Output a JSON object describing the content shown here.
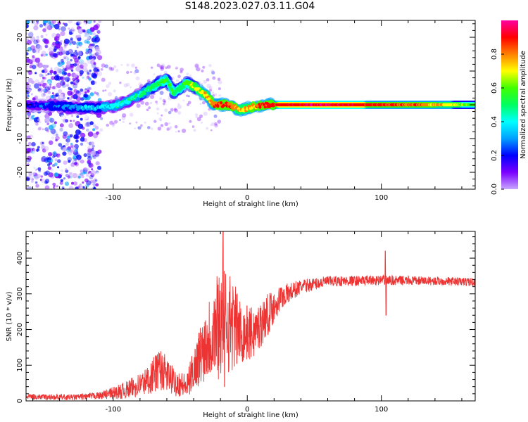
{
  "title": "S148.2023.027.03.11.G04",
  "chart_data": [
    {
      "type": "heatmap",
      "xlabel": "Height of straight line (km)",
      "ylabel": "Frequency (Hz)",
      "xlim": [
        -165,
        170
      ],
      "ylim": [
        -25,
        25
      ],
      "xticks": [
        -100,
        0,
        100
      ],
      "yticks": [
        -20,
        -10,
        0,
        10,
        20
      ],
      "colorbar": {
        "label": "Normalized spectral amplitude",
        "range": [
          0,
          1
        ],
        "ticks": [
          0.0,
          0.2,
          0.4,
          0.6,
          0.8
        ],
        "colors": [
          "#ffffff",
          "#c8a8ff",
          "#7a00ff",
          "#0000ff",
          "#00a0ff",
          "#00ffff",
          "#00ff60",
          "#40ff00",
          "#ffff00",
          "#ff8000",
          "#ff0000",
          "#ff00a0"
        ]
      },
      "ridge": [
        {
          "x": -165,
          "y": 0.0,
          "a": 0.25
        },
        {
          "x": -115,
          "y": -1.0,
          "a": 0.4
        },
        {
          "x": -100,
          "y": -0.5,
          "a": 0.45
        },
        {
          "x": -90,
          "y": 1.0,
          "a": 0.5
        },
        {
          "x": -80,
          "y": 3.0,
          "a": 0.5
        },
        {
          "x": -70,
          "y": 5.5,
          "a": 0.55
        },
        {
          "x": -60,
          "y": 7.5,
          "a": 0.6
        },
        {
          "x": -55,
          "y": 3.5,
          "a": 0.55
        },
        {
          "x": -50,
          "y": 5.0,
          "a": 0.55
        },
        {
          "x": -45,
          "y": 6.5,
          "a": 0.65
        },
        {
          "x": -38,
          "y": 5.0,
          "a": 0.7
        },
        {
          "x": -30,
          "y": 2.5,
          "a": 0.75
        },
        {
          "x": -25,
          "y": 0.0,
          "a": 0.85
        },
        {
          "x": -15,
          "y": 0.0,
          "a": 0.9
        },
        {
          "x": -5,
          "y": -1.5,
          "a": 0.75
        },
        {
          "x": 5,
          "y": -0.5,
          "a": 0.8
        },
        {
          "x": 15,
          "y": 0.0,
          "a": 0.9
        },
        {
          "x": 60,
          "y": 0.0,
          "a": 0.95
        },
        {
          "x": 95,
          "y": 0.0,
          "a": 0.9
        },
        {
          "x": 100,
          "y": 0.0,
          "a": 0.9
        },
        {
          "x": 140,
          "y": 0.0,
          "a": 0.8
        },
        {
          "x": 170,
          "y": 0.0,
          "a": 0.6
        }
      ]
    },
    {
      "type": "line",
      "xlabel": "Height of straight line (km)",
      "ylabel": "SNR (10 * v/v)",
      "xlim": [
        -165,
        170
      ],
      "ylim": [
        0,
        475
      ],
      "xticks": [
        -100,
        0,
        100
      ],
      "yticks": [
        0,
        100,
        200,
        300,
        400
      ],
      "color": "#ee3333",
      "envelope": [
        {
          "x": -165,
          "y": 12,
          "amp": 8
        },
        {
          "x": -130,
          "y": 10,
          "amp": 8
        },
        {
          "x": -110,
          "y": 15,
          "amp": 10
        },
        {
          "x": -90,
          "y": 30,
          "amp": 25
        },
        {
          "x": -75,
          "y": 55,
          "amp": 40
        },
        {
          "x": -65,
          "y": 90,
          "amp": 60
        },
        {
          "x": -55,
          "y": 55,
          "amp": 40
        },
        {
          "x": -45,
          "y": 40,
          "amp": 35
        },
        {
          "x": -40,
          "y": 90,
          "amp": 60
        },
        {
          "x": -30,
          "y": 170,
          "amp": 110
        },
        {
          "x": -20,
          "y": 230,
          "amp": 170
        },
        {
          "x": -12,
          "y": 220,
          "amp": 140
        },
        {
          "x": -5,
          "y": 190,
          "amp": 90
        },
        {
          "x": 5,
          "y": 190,
          "amp": 70
        },
        {
          "x": 15,
          "y": 240,
          "amp": 60
        },
        {
          "x": 25,
          "y": 290,
          "amp": 35
        },
        {
          "x": 40,
          "y": 320,
          "amp": 20
        },
        {
          "x": 60,
          "y": 335,
          "amp": 15
        },
        {
          "x": 100,
          "y": 338,
          "amp": 14
        },
        {
          "x": 140,
          "y": 336,
          "amp": 12
        },
        {
          "x": 170,
          "y": 333,
          "amp": 12
        }
      ],
      "spikes": [
        {
          "x": -18,
          "y": 475
        },
        {
          "x": -17,
          "y": 40
        },
        {
          "x": 103,
          "y": 420
        },
        {
          "x": 103.5,
          "y": 240
        }
      ]
    }
  ]
}
